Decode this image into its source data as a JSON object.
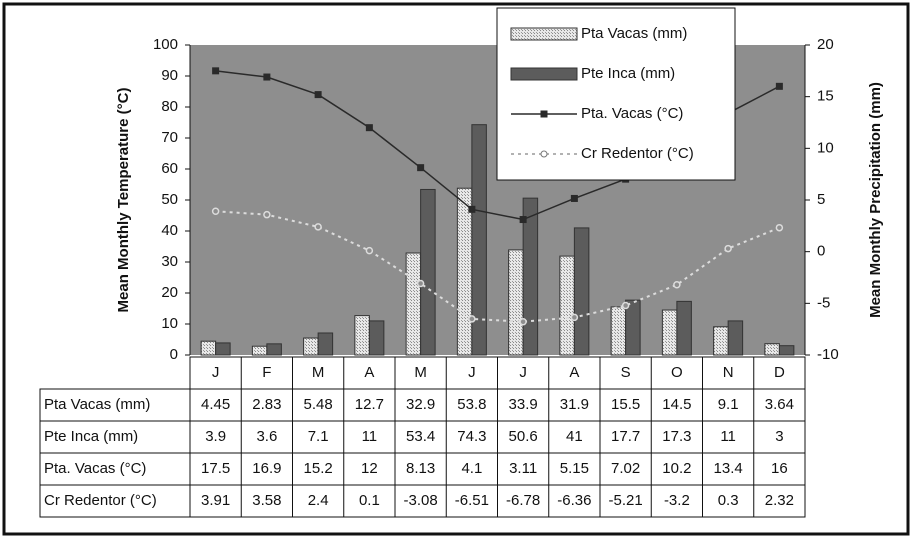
{
  "chart_data": {
    "type": "bar",
    "y_label": "Mean Monthly Temperature (°C)",
    "y2_label": "Mean Monthly Precipitation (mm)",
    "categories": [
      "J",
      "F",
      "M",
      "A",
      "M",
      "J",
      "J",
      "A",
      "S",
      "O",
      "N",
      "D"
    ],
    "ylim": [
      0,
      100
    ],
    "yticks": [
      0,
      10,
      20,
      30,
      40,
      50,
      60,
      70,
      80,
      90,
      100
    ],
    "y2lim": [
      -10,
      20
    ],
    "y2ticks": [
      -10,
      -5,
      0,
      5,
      10,
      15,
      20
    ],
    "legend": "top-right",
    "series": [
      {
        "name": "Pta Vacas (mm)",
        "type": "bar",
        "color": "#d6d6d6",
        "values": [
          4.45,
          2.83,
          5.48,
          12.7,
          32.9,
          53.8,
          33.9,
          31.9,
          15.5,
          14.5,
          9.1,
          3.64
        ]
      },
      {
        "name": "Pte Inca (mm)",
        "type": "bar",
        "color": "#5c5c5c",
        "values": [
          3.9,
          3.6,
          7.1,
          11,
          53.4,
          74.3,
          50.6,
          41,
          17.7,
          17.3,
          11,
          3
        ]
      },
      {
        "name": "Pta. Vacas (°C)",
        "type": "line",
        "axis": "y2",
        "color": "#2a2a2a",
        "values": [
          17.5,
          16.9,
          15.2,
          12,
          8.13,
          4.1,
          3.11,
          5.15,
          7.02,
          10.2,
          13.4,
          16
        ]
      },
      {
        "name": "Cr Redentor (°C)",
        "type": "dashed",
        "axis": "y2",
        "color": "#dcdcdc",
        "values": [
          3.91,
          3.58,
          2.4,
          0.1,
          -3.08,
          -6.51,
          -6.78,
          -6.36,
          -5.21,
          -3.2,
          0.3,
          2.32
        ]
      }
    ]
  }
}
